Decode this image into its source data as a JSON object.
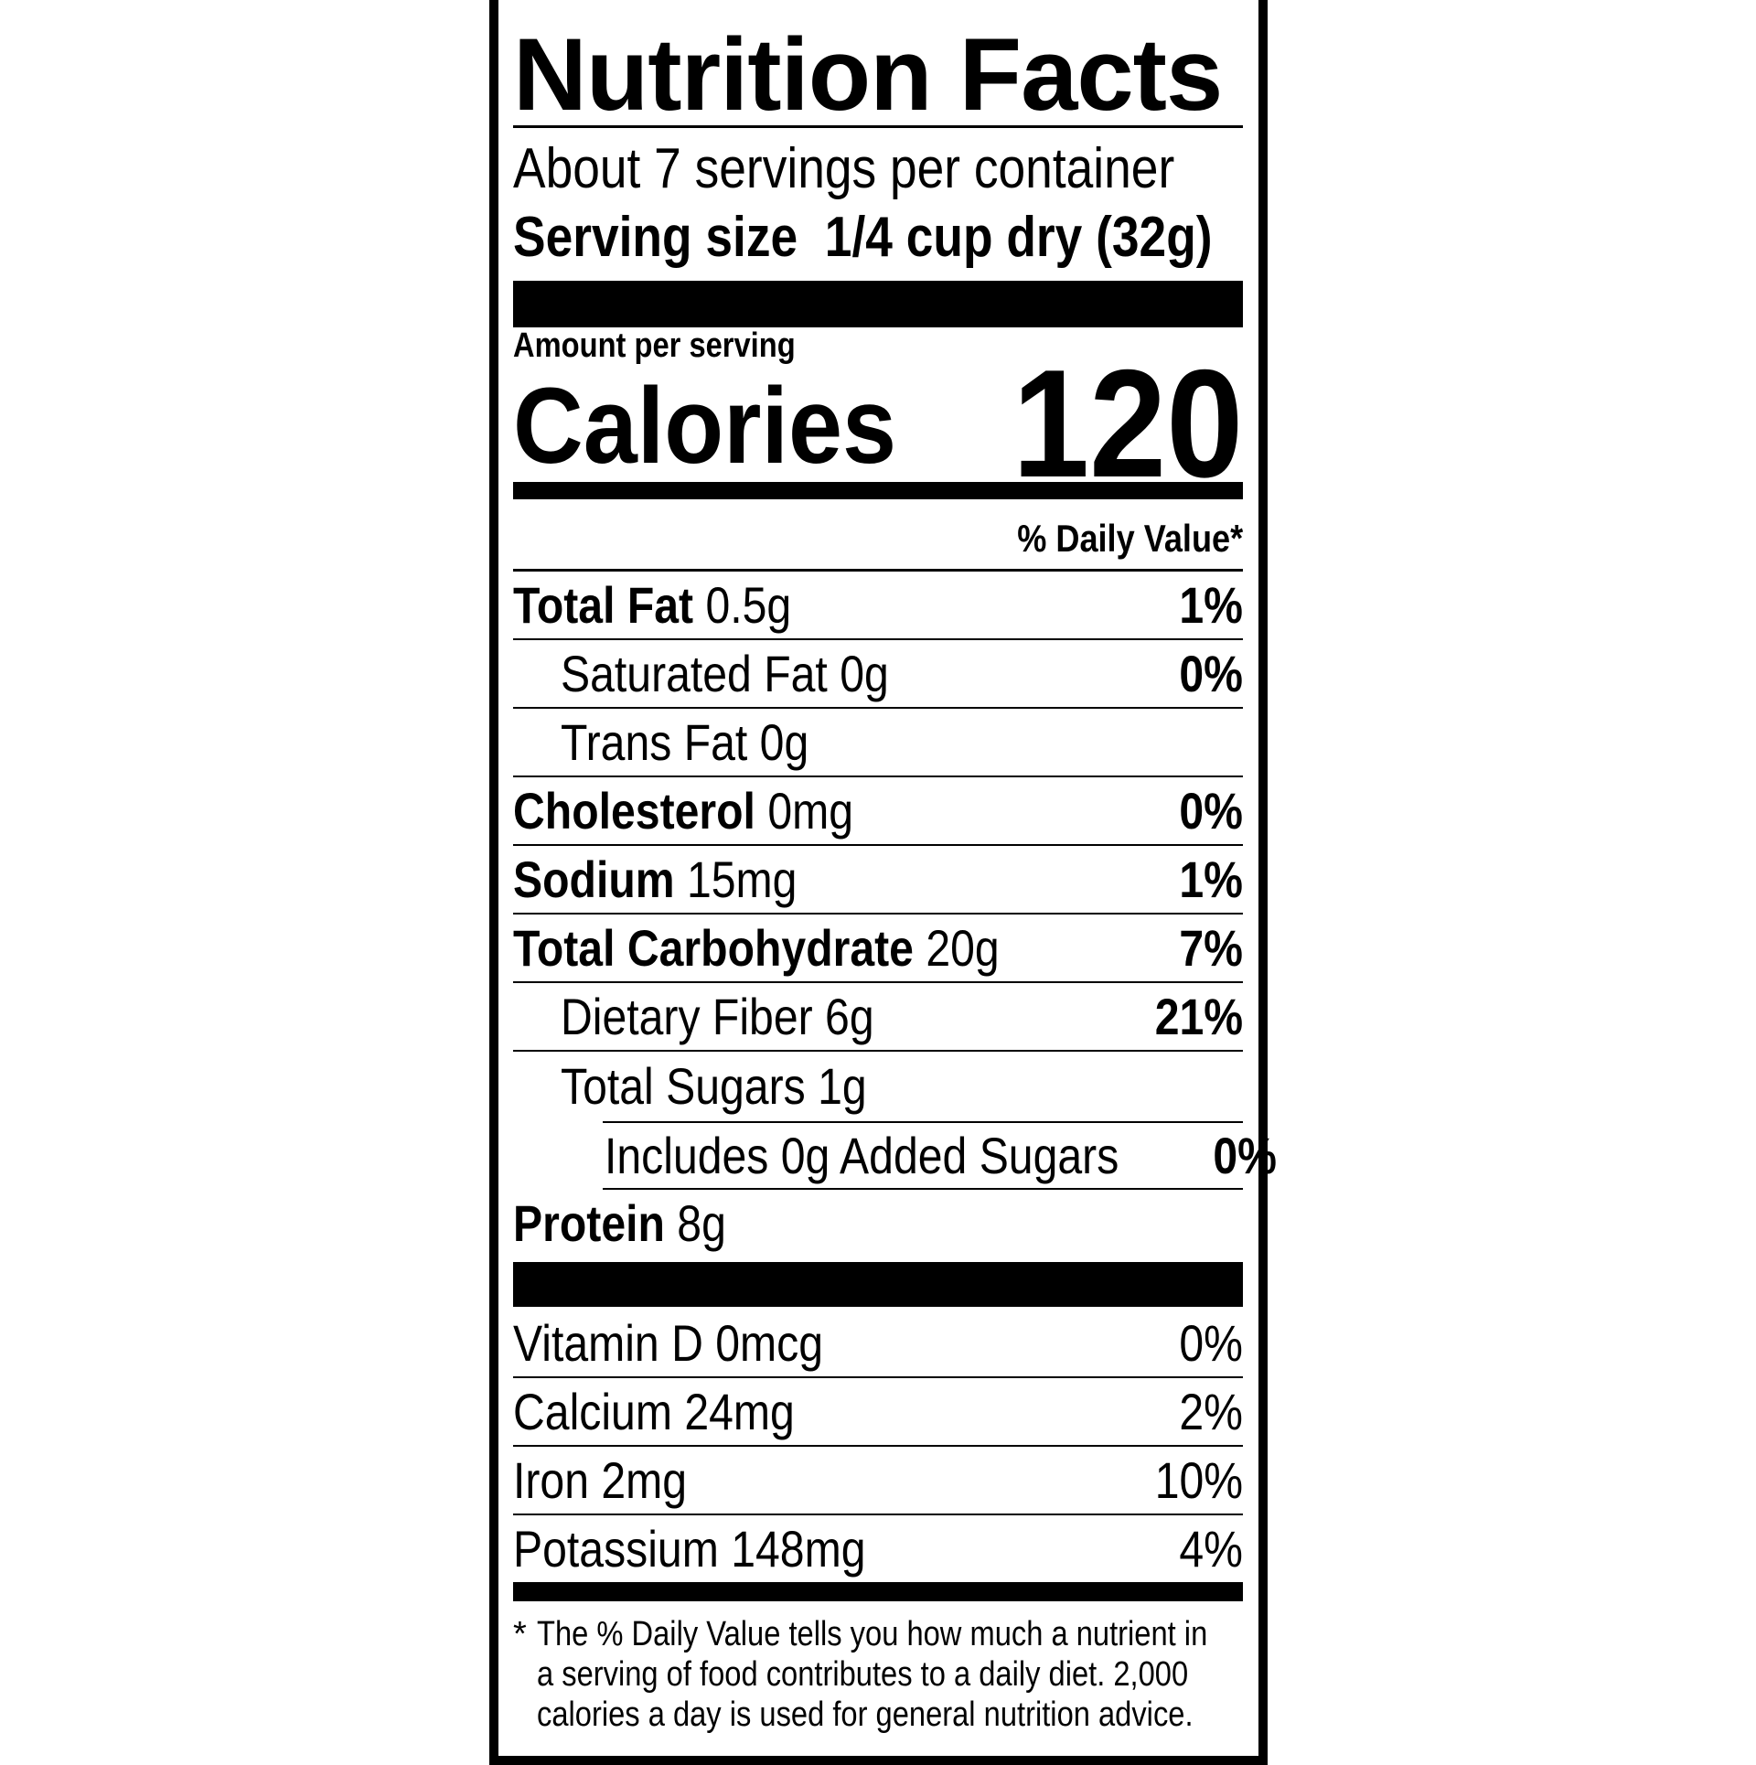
{
  "title": "Nutrition Facts",
  "servings_per_container": "About 7 servings per container",
  "serving_size": {
    "label": "Serving size",
    "value": "1/4 cup dry (32g)"
  },
  "amount_per_serving": "Amount per serving",
  "calories": {
    "label": "Calories",
    "value": "120"
  },
  "daily_value_header": "% Daily Value*",
  "nutrients": [
    {
      "name": "Total Fat",
      "amount": "0.5g",
      "dv": "1%",
      "bold": true,
      "indent": 0
    },
    {
      "name": "Saturated Fat",
      "amount": "0g",
      "dv": "0%",
      "bold": false,
      "indent": 1
    },
    {
      "name": "Trans Fat",
      "amount": "0g",
      "dv": "",
      "bold": false,
      "indent": 1
    },
    {
      "name": "Cholesterol",
      "amount": "0mg",
      "dv": "0%",
      "bold": true,
      "indent": 0
    },
    {
      "name": "Sodium",
      "amount": "15mg",
      "dv": "1%",
      "bold": true,
      "indent": 0
    },
    {
      "name": "Total Carbohydrate",
      "amount": "20g",
      "dv": "7%",
      "bold": true,
      "indent": 0
    },
    {
      "name": "Dietary Fiber",
      "amount": "6g",
      "dv": "21%",
      "bold": false,
      "indent": 1
    },
    {
      "name": "Total Sugars",
      "amount": "1g",
      "dv": "",
      "bold": false,
      "indent": 1
    },
    {
      "name": "Includes 0g Added Sugars",
      "amount": "",
      "dv": "0%",
      "bold": false,
      "indent": 2
    },
    {
      "name": "Protein",
      "amount": "8g",
      "dv": "",
      "bold": true,
      "indent": 0
    }
  ],
  "vitamins": [
    {
      "name": "Vitamin D",
      "amount": "0mcg",
      "dv": "0%"
    },
    {
      "name": "Calcium",
      "amount": "24mg",
      "dv": "2%"
    },
    {
      "name": "Iron",
      "amount": "2mg",
      "dv": "10%"
    },
    {
      "name": "Potassium",
      "amount": "148mg",
      "dv": "4%"
    }
  ],
  "footnote": {
    "star": "*",
    "lines": [
      "The % Daily Value tells you how much a nutrient in",
      "a serving of food contributes to a daily diet. 2,000",
      "calories a day is used for general nutrition advice."
    ]
  }
}
